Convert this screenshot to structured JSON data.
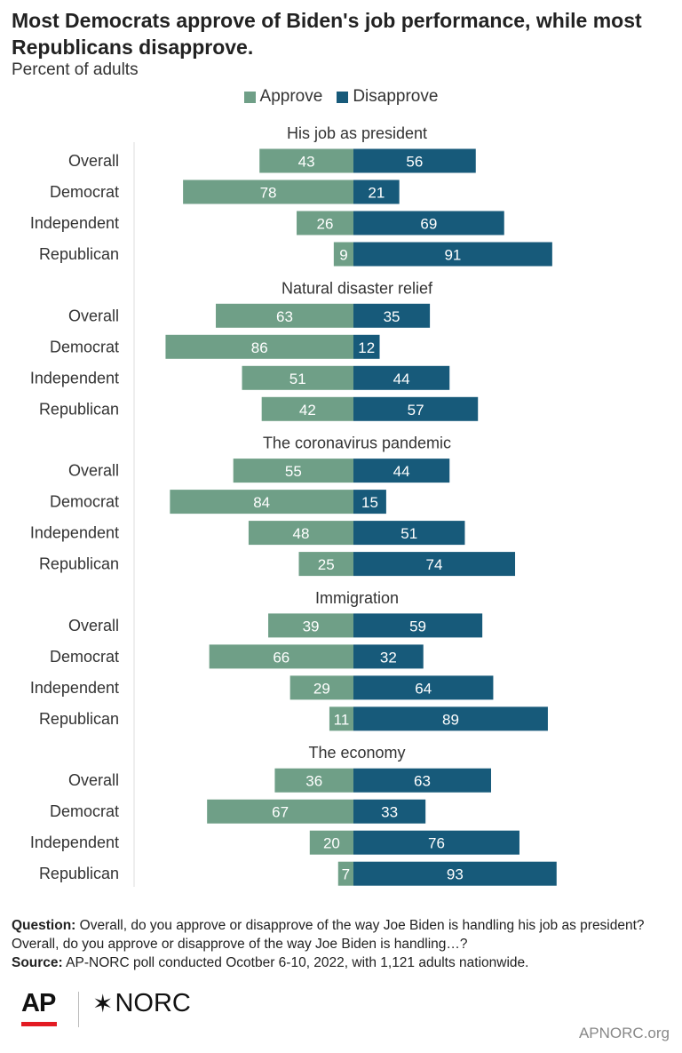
{
  "header": {
    "title": "Most Democrats approve of Biden's job performance, while most Republicans disapprove.",
    "subtitle": "Percent of adults"
  },
  "legend": {
    "approve_label": "Approve",
    "disapprove_label": "Disapprove"
  },
  "colors": {
    "approve": "#6f9f87",
    "disapprove": "#175a7a",
    "axis": "#dddddd",
    "ap_red": "#e31b23"
  },
  "chart_data": {
    "type": "bar",
    "orientation": "horizontal-diverging",
    "categories": [
      "Overall",
      "Democrat",
      "Independent",
      "Republican"
    ],
    "groups": [
      {
        "title": "His job as president",
        "approve": [
          43,
          78,
          26,
          9
        ],
        "disapprove": [
          56,
          21,
          69,
          91
        ]
      },
      {
        "title": "Natural disaster relief",
        "approve": [
          63,
          86,
          51,
          42
        ],
        "disapprove": [
          35,
          12,
          44,
          57
        ]
      },
      {
        "title": "The coronavirus pandemic",
        "approve": [
          55,
          84,
          48,
          25
        ],
        "disapprove": [
          44,
          15,
          51,
          74
        ]
      },
      {
        "title": "Immigration",
        "approve": [
          39,
          66,
          29,
          11
        ],
        "disapprove": [
          59,
          32,
          64,
          89
        ]
      },
      {
        "title": "The economy",
        "approve": [
          36,
          67,
          20,
          7
        ],
        "disapprove": [
          63,
          33,
          76,
          93
        ]
      }
    ],
    "series": [
      {
        "name": "Approve"
      },
      {
        "name": "Disapprove"
      }
    ],
    "legend_position": "top-center"
  },
  "footnote": {
    "question_label": "Question:",
    "question_text": "Overall, do you approve or disapprove of the way Joe Biden is handling his job as president? Overall, do you approve or disapprove of the way Joe Biden is handling…?",
    "source_label": "Source:",
    "source_text": "AP-NORC poll conducted Ocotber 6-10, 2022, with 1,121 adults nationwide."
  },
  "branding": {
    "ap_logo": "AP",
    "norc_logo": "NORC",
    "norc_star": "✶",
    "site": "APNORC.org"
  }
}
